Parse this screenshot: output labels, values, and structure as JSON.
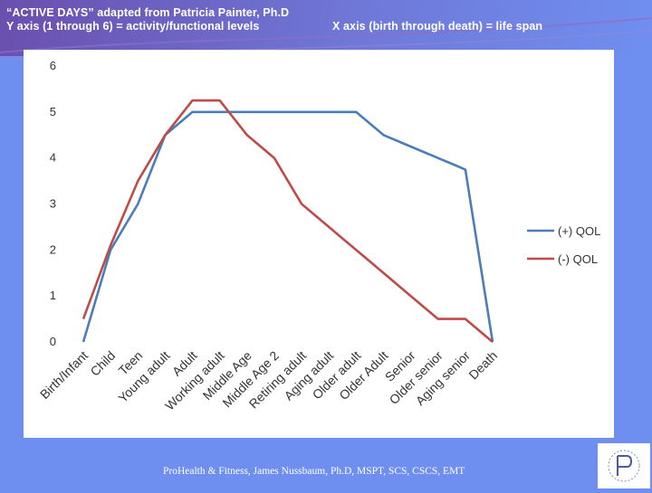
{
  "header": {
    "line1": "“ACTIVE DAYS” adapted from Patricia Painter, Ph.D",
    "line2": "Y axis (1 through 6) = activity/functional levels",
    "line3": "X axis (birth through death) = life span"
  },
  "footer": {
    "credit": "ProHealth & Fitness, James Nussbaum, Ph.D, MSPT, SCS, CSCS, EMT"
  },
  "colors": {
    "series_plus": "#4a7ebb",
    "series_minus": "#be4b48",
    "background": "#6f8ff0"
  },
  "chart_data": {
    "type": "line",
    "title": "",
    "xlabel": "",
    "ylabel": "",
    "ylim": [
      0,
      6
    ],
    "yticks": [
      0,
      1,
      2,
      3,
      4,
      5,
      6
    ],
    "grid": false,
    "legend_position": "right",
    "categories": [
      "Birth/Infant",
      "Child",
      "Teen",
      "Young adult",
      "Adult",
      "Working adult",
      "Middle Age",
      "Middle Age 2",
      "Retiring adult",
      "Aging adult",
      "Older adult",
      "Older Adult",
      "Senior",
      "Older senior",
      "Aging senior",
      "Death"
    ],
    "series": [
      {
        "name": "(+) QOL",
        "values": [
          0,
          2,
          3,
          4.5,
          5,
          5,
          5,
          5,
          5,
          5,
          5,
          4.5,
          4.25,
          4,
          3.75,
          0
        ]
      },
      {
        "name": "(-) QOL",
        "values": [
          0.5,
          2.1,
          3.5,
          4.5,
          5.25,
          5.25,
          4.5,
          4,
          3,
          2.5,
          2,
          1.5,
          1,
          0.5,
          0.5,
          0
        ]
      }
    ]
  }
}
